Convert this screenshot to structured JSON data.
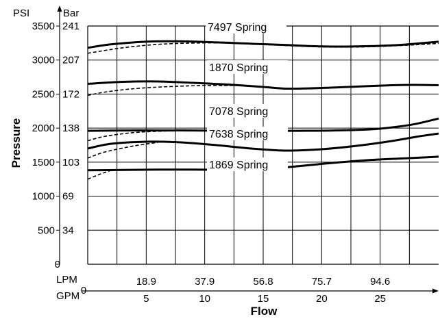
{
  "chart_data": {
    "type": "line",
    "xlabel": "Flow",
    "ylabel": "Pressure",
    "x_unit_primary": "GPM",
    "x_unit_secondary": "LPM",
    "y_unit_primary": "PSI",
    "y_unit_secondary": "Bar",
    "xlim": [
      0,
      30
    ],
    "ylim": [
      0,
      3500
    ],
    "grid": true,
    "x_ticks_gpm": [
      "0",
      "5",
      "10",
      "15",
      "20",
      "25"
    ],
    "x_ticks_lpm": [
      "18.9",
      "37.9",
      "56.8",
      "75.7",
      "94.6"
    ],
    "y_ticks_psi": [
      "0",
      "500",
      "1000",
      "1500",
      "2000",
      "2500",
      "3000",
      "3500"
    ],
    "y_ticks_bar": [
      "34",
      "69",
      "103",
      "138",
      "172",
      "207",
      "241"
    ],
    "series": [
      {
        "name": "7497 Spring",
        "x": [
          0,
          2,
          5,
          8,
          11,
          14,
          17,
          20,
          23,
          26,
          28,
          30
        ],
        "y": [
          3180,
          3230,
          3270,
          3275,
          3260,
          3240,
          3220,
          3200,
          3200,
          3215,
          3240,
          3270
        ],
        "dashed_x": [
          0,
          3,
          6,
          9,
          12,
          15,
          18,
          21,
          24,
          27,
          30
        ],
        "dashed_y": [
          3100,
          3180,
          3230,
          3250,
          3250,
          3230,
          3205,
          3190,
          3195,
          3215,
          3245
        ]
      },
      {
        "name": "1870 Spring",
        "x": [
          0,
          3,
          6,
          9,
          12,
          15,
          17,
          20,
          23,
          26,
          28,
          30
        ],
        "y": [
          2650,
          2680,
          2685,
          2665,
          2640,
          2605,
          2580,
          2590,
          2610,
          2630,
          2635,
          2630
        ],
        "dashed_x": [
          0,
          1.5,
          4,
          7,
          10,
          13
        ],
        "dashed_y": [
          2480,
          2530,
          2580,
          2610,
          2625,
          2625
        ]
      },
      {
        "name": "7078 Spring",
        "x": [
          0,
          3,
          6,
          9,
          12,
          15,
          18,
          21,
          24,
          26,
          28,
          30
        ],
        "y": [
          1960,
          1965,
          1965,
          1965,
          1960,
          1960,
          1960,
          1965,
          1980,
          2010,
          2060,
          2140
        ],
        "dashed_x": [
          0,
          1.5,
          4,
          7
        ],
        "dashed_y": [
          1815,
          1880,
          1935,
          1960
        ]
      },
      {
        "name": "7638 Spring",
        "x": [
          0,
          2,
          5,
          8,
          11,
          14,
          17,
          20,
          23,
          26,
          28,
          30
        ],
        "y": [
          1700,
          1770,
          1800,
          1790,
          1750,
          1700,
          1670,
          1690,
          1740,
          1810,
          1870,
          1920
        ],
        "dashed_x": [
          0,
          1.5,
          4,
          6
        ],
        "dashed_y": [
          1560,
          1650,
          1740,
          1790
        ]
      },
      {
        "name": "1869 Spring",
        "x": [
          0,
          3,
          6,
          9,
          12,
          15,
          18,
          21,
          24,
          27,
          30
        ],
        "y": [
          1380,
          1385,
          1390,
          1390,
          1390,
          1400,
          1440,
          1490,
          1530,
          1555,
          1580
        ],
        "dashed_x": [
          0,
          1,
          2
        ],
        "dashed_y": [
          1250,
          1320,
          1380
        ]
      }
    ]
  }
}
